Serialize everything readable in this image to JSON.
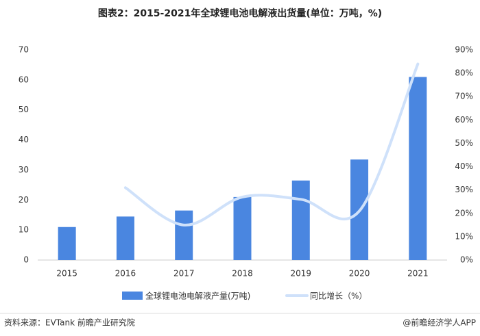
{
  "chart_data": {
    "type": "bar-line",
    "title": "图表2：2015-2021年全球锂电池电解液出货量(单位：万吨，%)",
    "categories": [
      "2015",
      "2016",
      "2017",
      "2018",
      "2019",
      "2020",
      "2021"
    ],
    "series": [
      {
        "name": "全球锂电池电解液产量(万吨)",
        "type": "bar",
        "color": "#4a86e0",
        "values": [
          11,
          14.5,
          16.5,
          21,
          26.5,
          33.5,
          61
        ]
      },
      {
        "name": "同比增长（%）",
        "type": "line",
        "axis": "y2",
        "color": "#cfe1fa",
        "values": [
          null,
          31,
          15,
          27,
          26,
          21,
          84
        ]
      }
    ],
    "ylim": [
      0,
      70
    ],
    "yticks": [
      0,
      10,
      20,
      30,
      40,
      50,
      60,
      70
    ],
    "y2lim": [
      0,
      90
    ],
    "y2ticks": [
      {
        "value": 0,
        "label": "0%"
      },
      {
        "value": 10,
        "label": "10%"
      },
      {
        "value": 20,
        "label": "20%"
      },
      {
        "value": 30,
        "label": "30%"
      },
      {
        "value": 40,
        "label": "40%"
      },
      {
        "value": 50,
        "label": "50%"
      },
      {
        "value": 60,
        "label": "60%"
      },
      {
        "value": 70,
        "label": "70%"
      },
      {
        "value": 80,
        "label": "80%"
      },
      {
        "value": 90,
        "label": "90%"
      }
    ],
    "source": "资料来源：EVTank 前瞻产业研究院",
    "credit": "@前瞻经济学人APP"
  }
}
